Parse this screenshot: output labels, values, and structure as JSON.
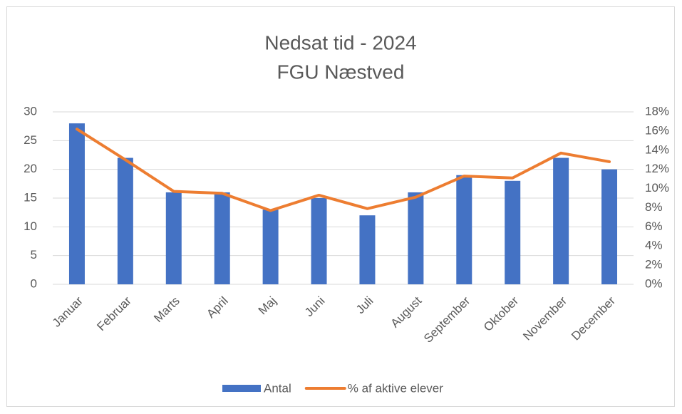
{
  "chart_data": {
    "type": "bar",
    "title": "Nedsat tid - 2024",
    "subtitle": "FGU Næstved",
    "categories": [
      "Januar",
      "Februar",
      "Marts",
      "April",
      "Maj",
      "Juni",
      "Juli",
      "August",
      "September",
      "Oktober",
      "November",
      "December"
    ],
    "series": [
      {
        "name": "Antal",
        "type": "bar",
        "color": "#4472c4",
        "values": [
          28,
          22,
          16,
          16,
          13,
          15,
          12,
          16,
          19,
          18,
          22,
          20
        ]
      },
      {
        "name": "% af aktive elever",
        "type": "line",
        "axis": "y2",
        "color": "#ed7d31",
        "values": [
          16.2,
          13,
          9.7,
          9.5,
          7.7,
          9.3,
          7.9,
          9.1,
          11.3,
          11.1,
          13.7,
          12.8
        ]
      }
    ],
    "ylim": [
      0,
      30
    ],
    "yticks": [
      0,
      5,
      10,
      15,
      20,
      25,
      30
    ],
    "y2lim": [
      0,
      18
    ],
    "y2ticks": [
      {
        "value": 0,
        "label": "0%"
      },
      {
        "value": 2,
        "label": "2%"
      },
      {
        "value": 4,
        "label": "4%"
      },
      {
        "value": 6,
        "label": "6%"
      },
      {
        "value": 8,
        "label": "8%"
      },
      {
        "value": 10,
        "label": "10%"
      },
      {
        "value": 12,
        "label": "12%"
      },
      {
        "value": 14,
        "label": "14%"
      },
      {
        "value": 16,
        "label": "16%"
      },
      {
        "value": 18,
        "label": "18%"
      }
    ],
    "grid": true,
    "legend": "bottom"
  }
}
